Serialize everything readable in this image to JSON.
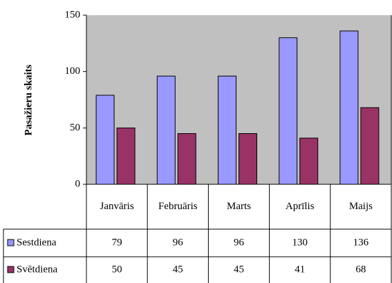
{
  "chart_data": {
    "type": "bar",
    "y_axis_label": "Pasažieru skaits",
    "categories": [
      "Janvāris",
      "Februāris",
      "Marts",
      "Aprīlis",
      "Maijs"
    ],
    "series": [
      {
        "name": "Sestdiena",
        "color": "#9999ff",
        "values": [
          79,
          96,
          96,
          130,
          136
        ]
      },
      {
        "name": "Svētdiena",
        "color": "#993366",
        "values": [
          50,
          45,
          45,
          41,
          68
        ]
      }
    ],
    "ylim": [
      0,
      150
    ],
    "yticks": [
      0,
      50,
      100,
      150
    ],
    "grid": false,
    "data_table": true
  }
}
